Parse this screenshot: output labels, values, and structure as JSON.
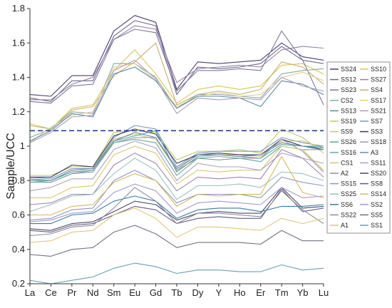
{
  "chart_data": {
    "type": "line",
    "ylabel": "Sample/UCC",
    "xlabel": "",
    "title": "",
    "categories": [
      "La",
      "Ce",
      "Pr",
      "Nd",
      "Sm",
      "Eu",
      "Gd",
      "Tb",
      "Dy",
      "Y",
      "Ho",
      "Er",
      "Tm",
      "Yb",
      "Lu"
    ],
    "ylim": [
      0.2,
      1.8
    ],
    "yticks": [
      "0.2",
      "0.4",
      "0.6",
      "0.8",
      "1",
      "1.2",
      "1.4",
      "1.6",
      "1.8"
    ],
    "grid": false,
    "legend_position": "right",
    "reference_line": {
      "value": 1.09,
      "style": "dashed",
      "color": "#1f3f8f"
    },
    "series": [
      {
        "name": "SS24",
        "color": "#4b3f72",
        "values": [
          1.3,
          1.29,
          1.41,
          1.41,
          1.67,
          1.76,
          1.72,
          1.33,
          1.49,
          1.48,
          1.49,
          1.5,
          1.6,
          1.52,
          1.5
        ]
      },
      {
        "name": "SS10",
        "color": "#d8c65a",
        "values": [
          1.13,
          1.1,
          1.22,
          1.24,
          1.44,
          1.56,
          1.42,
          1.25,
          1.33,
          1.35,
          1.33,
          1.35,
          1.47,
          1.48,
          1.42
        ]
      },
      {
        "name": "SS12",
        "color": "#6a6a8a",
        "values": [
          1.28,
          1.26,
          1.38,
          1.38,
          1.64,
          1.73,
          1.7,
          1.3,
          1.46,
          1.45,
          1.46,
          1.48,
          1.58,
          1.5,
          1.48
        ]
      },
      {
        "name": "SS27",
        "color": "#9a80a8",
        "values": [
          1.27,
          1.27,
          1.36,
          1.4,
          1.62,
          1.7,
          1.68,
          1.37,
          1.45,
          1.46,
          1.47,
          1.46,
          1.56,
          1.58,
          1.57
        ]
      },
      {
        "name": "SS23",
        "color": "#7a7a9a",
        "values": [
          1.26,
          1.25,
          1.35,
          1.36,
          1.62,
          1.68,
          1.66,
          1.32,
          1.44,
          1.44,
          1.45,
          1.44,
          1.67,
          1.5,
          1.24
        ]
      },
      {
        "name": "SS4",
        "color": "#c8b070",
        "values": [
          1.12,
          1.1,
          1.21,
          1.23,
          1.41,
          1.49,
          1.6,
          1.24,
          1.3,
          1.32,
          1.3,
          1.33,
          1.49,
          1.46,
          1.36
        ]
      },
      {
        "name": "CS2",
        "color": "#88a8a8",
        "values": [
          1.05,
          1.1,
          1.2,
          1.19,
          1.48,
          1.48,
          1.4,
          1.22,
          1.3,
          1.3,
          1.29,
          1.28,
          1.42,
          1.44,
          1.45
        ]
      },
      {
        "name": "SS17",
        "color": "#e0d090",
        "values": [
          1.02,
          1.11,
          1.18,
          1.2,
          1.46,
          1.48,
          1.38,
          1.23,
          1.29,
          1.31,
          1.29,
          1.3,
          1.4,
          1.43,
          1.38
        ]
      },
      {
        "name": "SS13",
        "color": "#5a8aa8",
        "values": [
          1.03,
          1.09,
          1.19,
          1.17,
          1.42,
          1.46,
          1.38,
          1.22,
          1.29,
          1.29,
          1.28,
          1.23,
          1.38,
          1.36,
          1.3
        ]
      },
      {
        "name": "SS21",
        "color": "#b09ab8",
        "values": [
          1.02,
          1.08,
          1.17,
          1.18,
          1.44,
          1.5,
          1.39,
          1.19,
          1.28,
          1.27,
          1.28,
          1.27,
          1.4,
          1.35,
          1.32
        ]
      },
      {
        "name": "SS19",
        "color": "#c0c870",
        "values": [
          0.83,
          0.83,
          0.88,
          0.88,
          1.08,
          1.09,
          1.08,
          0.92,
          0.97,
          0.97,
          0.98,
          0.96,
          1.1,
          1.05,
          0.96
        ]
      },
      {
        "name": "SS7",
        "color": "#7a9ac0",
        "values": [
          0.82,
          0.81,
          0.87,
          0.87,
          1.05,
          1.12,
          1.1,
          0.88,
          0.96,
          0.97,
          0.97,
          0.97,
          1.05,
          1.02,
          1.0
        ]
      },
      {
        "name": "SS9",
        "color": "#d0c080",
        "values": [
          0.81,
          0.8,
          0.86,
          0.87,
          1.04,
          1.07,
          1.04,
          0.86,
          0.95,
          0.95,
          0.95,
          0.94,
          1.03,
          1.03,
          0.99
        ]
      },
      {
        "name": "SS3",
        "color": "#3a3a5a",
        "values": [
          0.82,
          0.82,
          0.89,
          0.88,
          1.06,
          1.1,
          1.07,
          0.9,
          0.95,
          0.96,
          0.95,
          0.95,
          1.04,
          1.0,
          0.98
        ]
      },
      {
        "name": "SS26",
        "color": "#5aa898",
        "values": [
          0.8,
          0.8,
          0.85,
          0.86,
          1.03,
          1.06,
          1.09,
          0.85,
          0.94,
          0.95,
          0.94,
          0.93,
          1.01,
          1.0,
          1.0
        ]
      },
      {
        "name": "SS18",
        "color": "#9a9aaa",
        "values": [
          0.8,
          0.79,
          0.84,
          0.86,
          1.02,
          1.05,
          1.05,
          0.86,
          0.93,
          0.94,
          0.93,
          0.93,
          1.04,
          0.97,
          0.85
        ]
      },
      {
        "name": "SS16",
        "color": "#6aa8a0",
        "values": [
          0.79,
          0.79,
          0.84,
          0.85,
          1.02,
          1.04,
          1.02,
          0.83,
          0.93,
          0.92,
          0.93,
          0.91,
          1.0,
          0.98,
          0.98
        ]
      },
      {
        "name": "A3",
        "color": "#6a8ab0",
        "values": [
          0.81,
          0.8,
          0.86,
          0.87,
          1.03,
          1.08,
          1.05,
          0.87,
          0.95,
          0.95,
          0.94,
          0.95,
          1.02,
          1.0,
          0.99
        ]
      },
      {
        "name": "CS1",
        "color": "#d8c870",
        "values": [
          0.7,
          0.7,
          0.76,
          0.77,
          0.95,
          1.0,
          0.96,
          0.78,
          0.86,
          0.85,
          0.86,
          0.86,
          1.0,
          0.98,
          0.86
        ]
      },
      {
        "name": "SS11",
        "color": "#b0a0c0",
        "values": [
          0.74,
          0.76,
          0.81,
          0.81,
          0.98,
          1.03,
          0.99,
          0.8,
          0.9,
          0.88,
          0.88,
          0.86,
          0.96,
          0.93,
          0.9
        ]
      },
      {
        "name": "A2",
        "color": "#9a88b0",
        "values": [
          0.66,
          0.67,
          0.72,
          0.72,
          0.89,
          0.96,
          0.9,
          0.74,
          0.82,
          0.81,
          0.82,
          0.81,
          0.98,
          0.93,
          0.82
        ]
      },
      {
        "name": "SS20",
        "color": "#4a4a6a",
        "values": [
          0.52,
          0.51,
          0.55,
          0.56,
          0.62,
          0.68,
          0.66,
          0.57,
          0.61,
          0.62,
          0.61,
          0.61,
          0.76,
          0.64,
          0.65
        ]
      },
      {
        "name": "SS15",
        "color": "#8898c0",
        "values": [
          0.57,
          0.58,
          0.63,
          0.64,
          0.8,
          0.86,
          0.8,
          0.67,
          0.72,
          0.72,
          0.72,
          0.7,
          0.82,
          0.79,
          0.77
        ]
      },
      {
        "name": "SS8",
        "color": "#6a5a88",
        "values": [
          0.51,
          0.5,
          0.54,
          0.55,
          0.6,
          0.65,
          0.63,
          0.55,
          0.58,
          0.59,
          0.58,
          0.58,
          0.75,
          0.62,
          0.64
        ]
      },
      {
        "name": "SS25",
        "color": "#a0c0c0",
        "values": [
          0.62,
          0.66,
          0.71,
          0.72,
          0.84,
          0.93,
          0.86,
          0.69,
          0.77,
          0.77,
          0.78,
          0.76,
          0.85,
          0.84,
          0.8
        ]
      },
      {
        "name": "SS14",
        "color": "#d8b860",
        "values": [
          0.6,
          0.6,
          0.65,
          0.66,
          0.79,
          0.84,
          0.8,
          0.65,
          0.72,
          0.71,
          0.72,
          0.72,
          0.94,
          0.73,
          0.7
        ]
      },
      {
        "name": "SS6",
        "color": "#3a7aa8",
        "values": [
          0.55,
          0.55,
          0.6,
          0.61,
          0.68,
          0.71,
          0.68,
          0.58,
          0.63,
          0.64,
          0.64,
          0.62,
          0.65,
          0.65,
          0.66
        ]
      },
      {
        "name": "SS2",
        "color": "#a898c8",
        "values": [
          0.56,
          0.57,
          0.61,
          0.62,
          0.73,
          0.78,
          0.74,
          0.61,
          0.67,
          0.68,
          0.67,
          0.66,
          0.76,
          0.7,
          0.71
        ]
      },
      {
        "name": "SS22",
        "color": "#8a8a9a",
        "values": [
          0.48,
          0.49,
          0.53,
          0.54,
          0.64,
          0.76,
          0.68,
          0.55,
          0.61,
          0.61,
          0.6,
          0.59,
          0.74,
          0.63,
          0.55
        ]
      },
      {
        "name": "SS5",
        "color": "#707080",
        "values": [
          0.37,
          0.36,
          0.4,
          0.41,
          0.5,
          0.54,
          0.49,
          0.41,
          0.44,
          0.44,
          0.44,
          0.43,
          0.51,
          0.45,
          0.45
        ]
      },
      {
        "name": "A1",
        "color": "#e0c880",
        "values": [
          0.44,
          0.45,
          0.5,
          0.51,
          0.6,
          0.64,
          0.58,
          0.47,
          0.53,
          0.53,
          0.52,
          0.51,
          0.58,
          0.55,
          0.58
        ]
      },
      {
        "name": "SS1",
        "color": "#6aa0b8",
        "values": [
          0.22,
          0.2,
          0.22,
          0.24,
          0.29,
          0.32,
          0.3,
          0.26,
          0.28,
          0.28,
          0.27,
          0.27,
          0.31,
          0.28,
          0.29
        ]
      }
    ]
  }
}
